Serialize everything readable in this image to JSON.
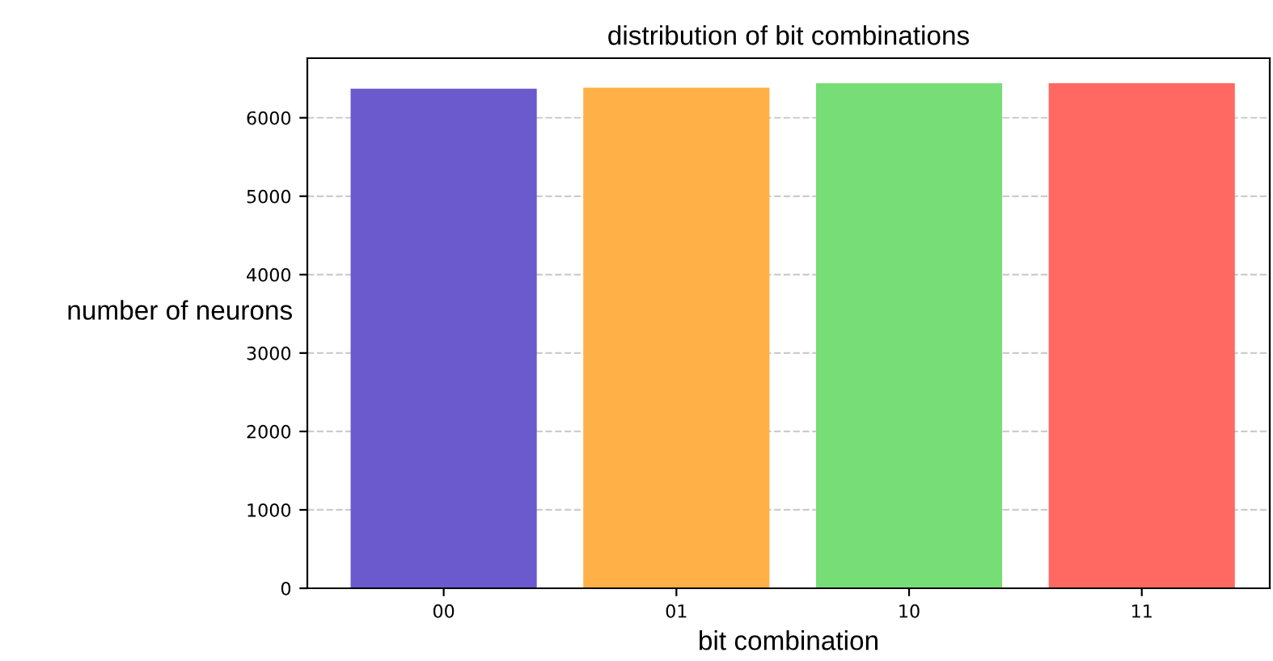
{
  "chart_data": {
    "type": "bar",
    "title": "distribution of bit combinations",
    "xlabel": "bit combination",
    "ylabel": "number of neurons",
    "categories": [
      "00",
      "01",
      "10",
      "11"
    ],
    "values": [
      6370,
      6385,
      6440,
      6440
    ],
    "colors": [
      "#6a5acd",
      "#ffb047",
      "#77dd77",
      "#ff6961"
    ],
    "ylim": [
      0,
      6760
    ],
    "yticks": [
      0,
      1000,
      2000,
      3000,
      4000,
      5000,
      6000
    ],
    "grid": "y"
  }
}
